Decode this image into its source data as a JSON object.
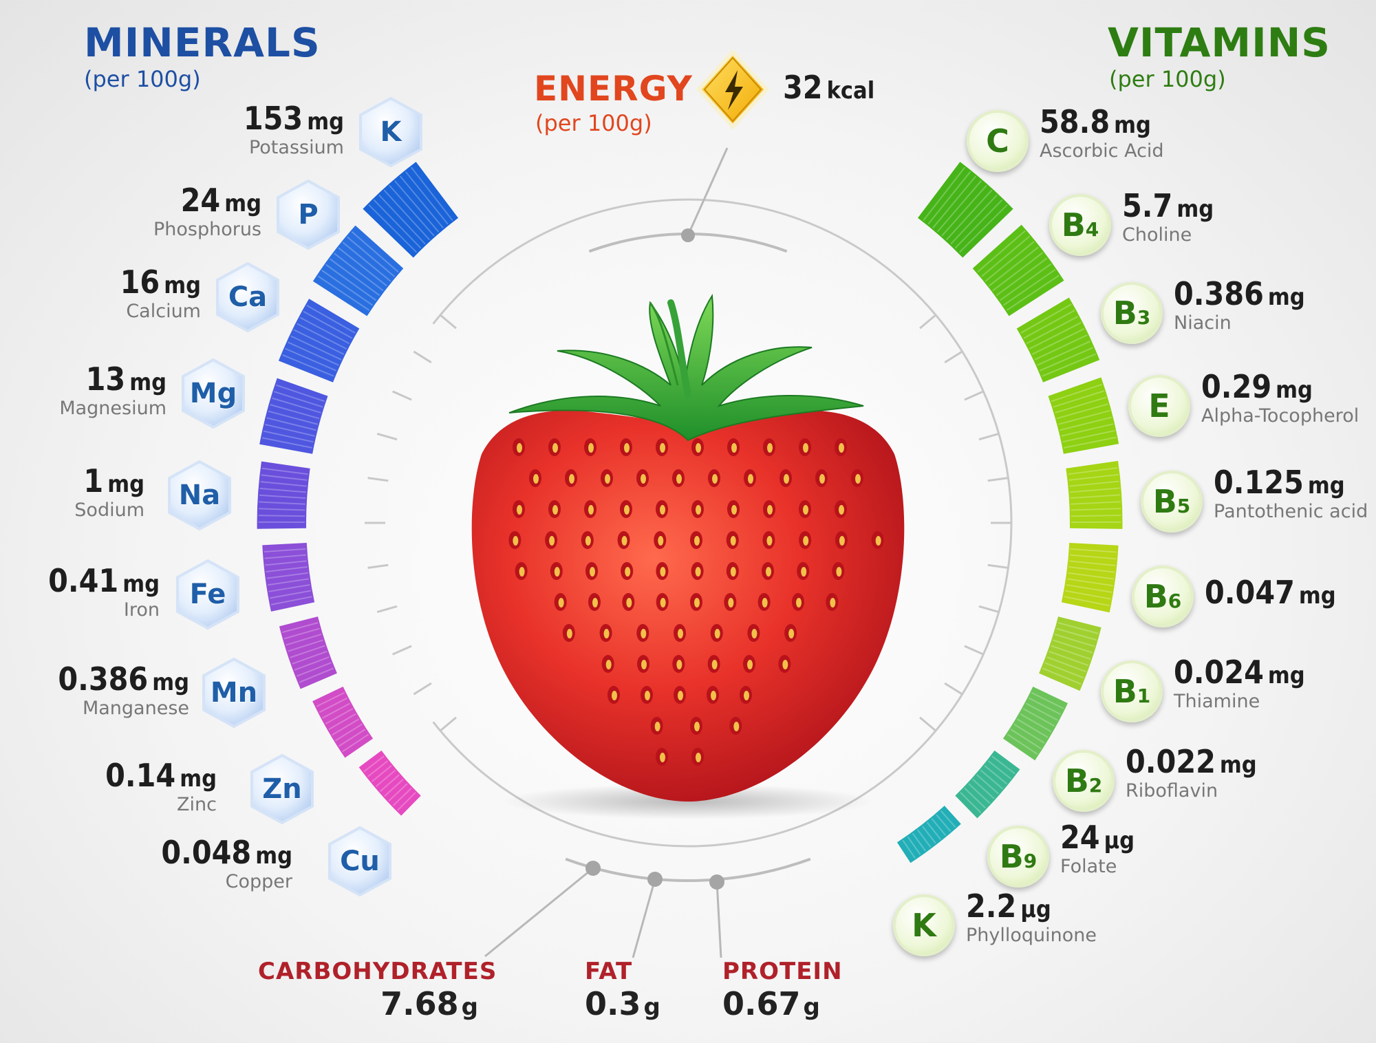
{
  "minerals": {
    "title": "MINERALS",
    "subtitle": "(per 100g)",
    "items": [
      {
        "value": "153",
        "unit": "mg",
        "name": "Potassium",
        "symbol": "K"
      },
      {
        "value": "24",
        "unit": "mg",
        "name": "Phosphorus",
        "symbol": "P"
      },
      {
        "value": "16",
        "unit": "mg",
        "name": "Calcium",
        "symbol": "Ca"
      },
      {
        "value": "13",
        "unit": "mg",
        "name": "Magnesium",
        "symbol": "Mg"
      },
      {
        "value": "1",
        "unit": "mg",
        "name": "Sodium",
        "symbol": "Na"
      },
      {
        "value": "0.41",
        "unit": "mg",
        "name": "Iron",
        "symbol": "Fe"
      },
      {
        "value": "0.386",
        "unit": "mg",
        "name": "Manganese",
        "symbol": "Mn"
      },
      {
        "value": "0.14",
        "unit": "mg",
        "name": "Zinc",
        "symbol": "Zn"
      },
      {
        "value": "0.048",
        "unit": "mg",
        "name": "Copper",
        "symbol": "Cu"
      }
    ]
  },
  "vitamins": {
    "title": "VITAMINS",
    "subtitle": "(per 100g)",
    "items": [
      {
        "value": "58.8",
        "unit": "mg",
        "name": "Ascorbic Acid",
        "symbol": "C",
        "sub": ""
      },
      {
        "value": "5.7",
        "unit": "mg",
        "name": "Choline",
        "symbol": "B",
        "sub": "4"
      },
      {
        "value": "0.386",
        "unit": "mg",
        "name": "Niacin",
        "symbol": "B",
        "sub": "3"
      },
      {
        "value": "0.29",
        "unit": "mg",
        "name": "Alpha-Tocopherol",
        "symbol": "E",
        "sub": ""
      },
      {
        "value": "0.125",
        "unit": "mg",
        "name": "Pantothenic acid",
        "symbol": "B",
        "sub": "5"
      },
      {
        "value": "0.047",
        "unit": "mg",
        "name": "",
        "symbol": "B",
        "sub": "6"
      },
      {
        "value": "0.024",
        "unit": "mg",
        "name": "Thiamine",
        "symbol": "B",
        "sub": "1"
      },
      {
        "value": "0.022",
        "unit": "mg",
        "name": "Riboflavin",
        "symbol": "B",
        "sub": "2"
      },
      {
        "value": "24",
        "unit": "µg",
        "name": "Folate",
        "symbol": "B",
        "sub": "9"
      },
      {
        "value": "2.2",
        "unit": "µg",
        "name": "Phylloquinone",
        "symbol": "K",
        "sub": ""
      }
    ]
  },
  "energy": {
    "label": "ENERGY",
    "subtitle": "(per 100g)",
    "value": "32",
    "unit": "kcal"
  },
  "macros": [
    {
      "label": "CARBOHYDRATES",
      "value": "7.68",
      "unit": "g"
    },
    {
      "label": "FAT",
      "value": "0.3",
      "unit": "g"
    },
    {
      "label": "PROTEIN",
      "value": "0.67",
      "unit": "g"
    }
  ],
  "colors": {
    "minerals_title": "#1d4fa3",
    "vitamins_title": "#2e7d12",
    "energy_label": "#e1461e",
    "macro_label": "#b0212a",
    "mineral_bars": [
      "#1a63d8",
      "#2a6fe0",
      "#3a5fe0",
      "#4f57e0",
      "#6a4fdc",
      "#8b4fd8",
      "#b04ccf",
      "#d24cc6",
      "#e64ac0"
    ],
    "vitamin_bars": [
      "#46b418",
      "#5cbf16",
      "#74c814",
      "#8ed012",
      "#a5d514",
      "#b6d616",
      "#9fd030",
      "#6cc35a",
      "#3ab792",
      "#22aeb7"
    ]
  },
  "icons": {
    "energy": "lightning-bolt-icon",
    "fruit": "strawberry-illustration"
  }
}
